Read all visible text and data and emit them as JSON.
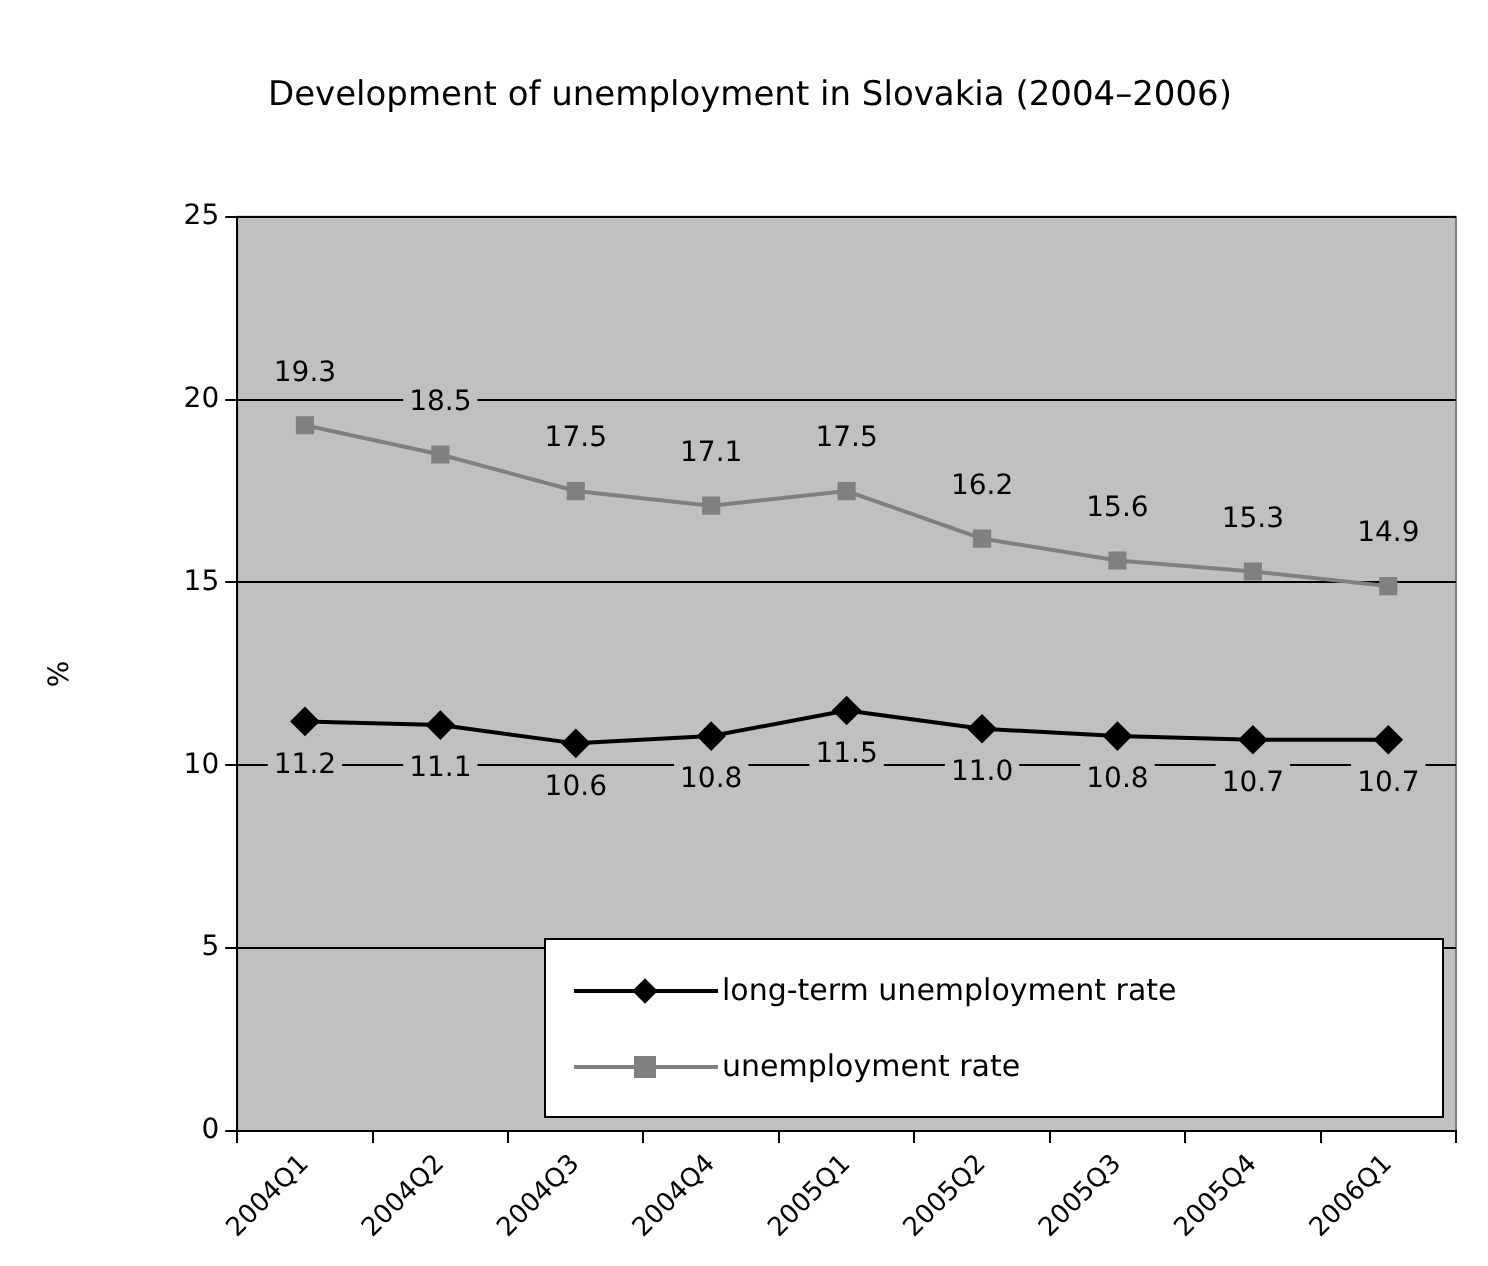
{
  "chart_data": {
    "type": "line",
    "title": "Development of unemployment in Slovakia (2004–2006)",
    "ylabel": "%",
    "categories": [
      "2004Q1",
      "2004Q2",
      "2004Q3",
      "2004Q4",
      "2005Q1",
      "2005Q2",
      "2005Q3",
      "2005Q4",
      "2006Q1"
    ],
    "series": [
      {
        "name": "long-term unemployment rate",
        "color": "#000000",
        "marker": "diamond",
        "values": [
          11.2,
          11.1,
          10.6,
          10.8,
          11.5,
          11.0,
          10.8,
          10.7,
          10.7
        ],
        "value_labels": [
          "11.2",
          "11.1",
          "10.6",
          "10.8",
          "11.5",
          "11.0",
          "10.8",
          "10.7",
          "10.7"
        ]
      },
      {
        "name": "unemployment rate",
        "color": "#808080",
        "marker": "square",
        "values": [
          19.3,
          18.5,
          17.5,
          17.1,
          17.5,
          16.2,
          15.6,
          15.3,
          14.9
        ],
        "value_labels": [
          "19.3",
          "18.5",
          "17.5",
          "17.1",
          "17.5",
          "16.2",
          "15.6",
          "15.3",
          "14.9"
        ]
      }
    ],
    "ylim": [
      0,
      25
    ],
    "yticks": [
      0,
      5,
      10,
      15,
      20,
      25
    ],
    "grid": "y",
    "legend": "bottom right"
  }
}
